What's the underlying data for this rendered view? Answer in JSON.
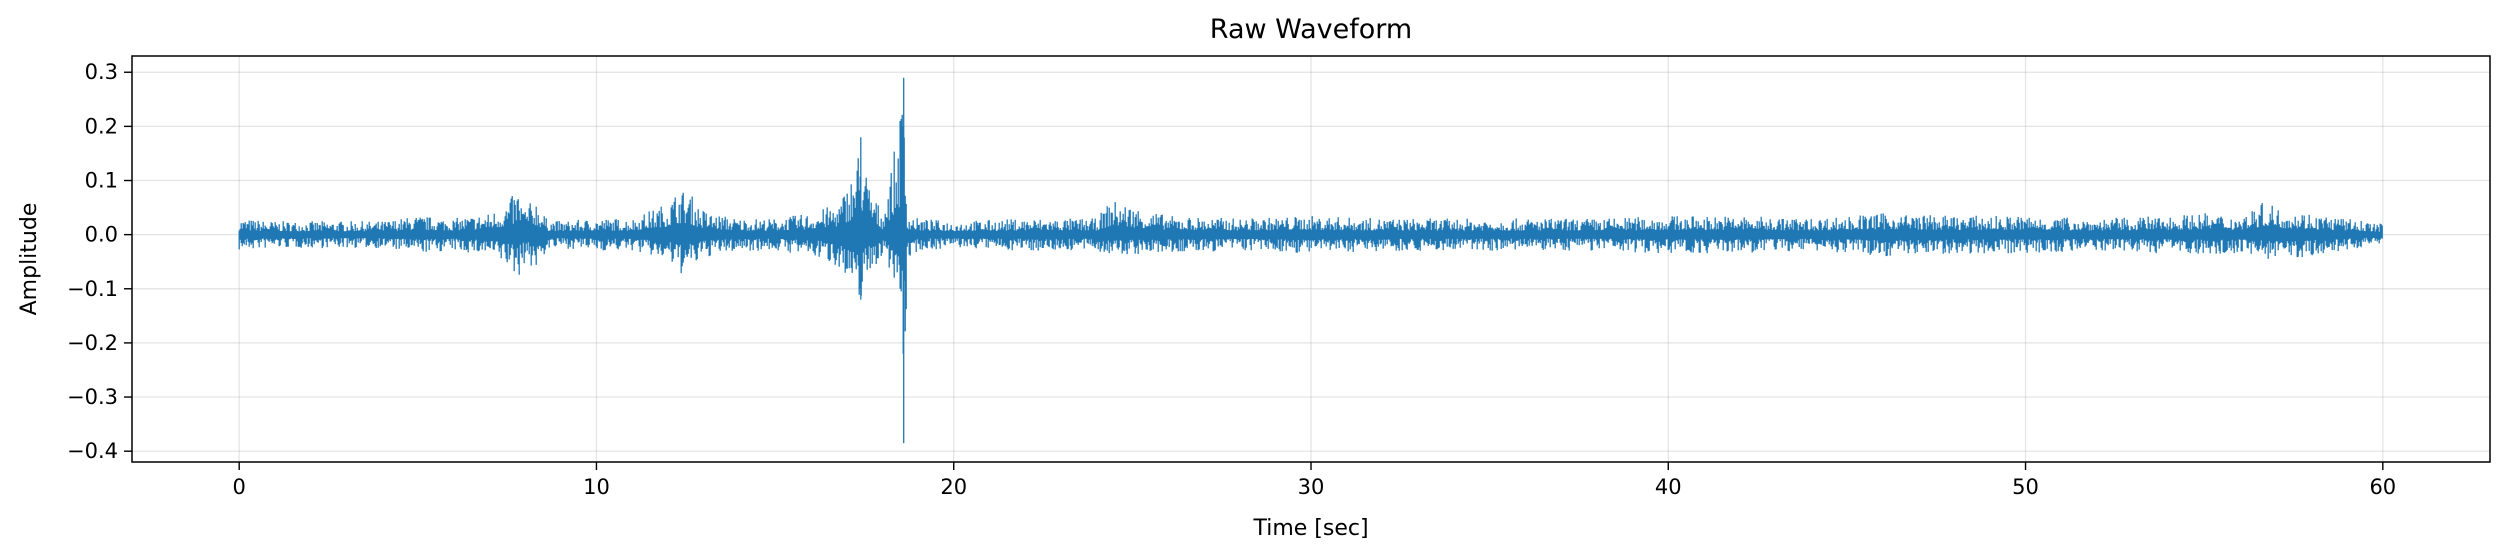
{
  "chart_data": {
    "type": "line",
    "title": "Raw Waveform",
    "xlabel": "Time [sec]",
    "ylabel": "Amplitude",
    "xlim": [
      -3,
      63
    ],
    "ylim": [
      -0.42,
      0.33
    ],
    "xticks": [
      0,
      10,
      20,
      30,
      40,
      50,
      60
    ],
    "xtick_labels": [
      "0",
      "10",
      "20",
      "30",
      "40",
      "50",
      "60"
    ],
    "yticks": [
      0.3,
      0.2,
      0.1,
      0.0,
      -0.1,
      -0.2,
      -0.3,
      -0.4
    ],
    "ytick_labels": [
      "0.3",
      "0.2",
      "0.1",
      "0.0",
      "−0.1",
      "−0.2",
      "−0.3",
      "−0.4"
    ],
    "grid": true,
    "line_color": "#1f77b4",
    "series": [
      {
        "x": [
          0,
          1,
          2,
          3,
          4,
          5,
          6,
          7,
          7.5,
          7.8,
          8,
          8.3,
          8.6,
          9,
          10,
          11,
          12,
          12.3,
          12.6,
          12.9,
          13.2,
          14,
          15,
          16,
          16.8,
          17.2,
          17.4,
          17.6,
          18,
          18.5,
          18.6,
          18.7,
          19,
          20,
          22,
          24,
          24.4,
          26,
          28,
          30,
          32,
          34,
          36,
          38,
          40,
          42,
          44,
          46,
          48,
          50,
          52,
          54,
          55,
          56,
          56.8,
          57,
          58,
          59,
          60
        ],
        "y_max": [
          0.03,
          0.025,
          0.025,
          0.025,
          0.025,
          0.035,
          0.03,
          0.04,
          0.06,
          0.085,
          0.05,
          0.07,
          0.03,
          0.025,
          0.03,
          0.03,
          0.06,
          0.085,
          0.08,
          0.05,
          0.04,
          0.03,
          0.03,
          0.04,
          0.06,
          0.12,
          0.18,
          0.1,
          0.04,
          0.21,
          0.29,
          0.04,
          0.03,
          0.025,
          0.03,
          0.03,
          0.065,
          0.035,
          0.03,
          0.035,
          0.03,
          0.03,
          0.03,
          0.03,
          0.035,
          0.035,
          0.03,
          0.04,
          0.035,
          0.035,
          0.03,
          0.035,
          0.04,
          0.035,
          0.065,
          0.05,
          0.04,
          0.03,
          0.02
        ],
        "y_min": [
          -0.03,
          -0.025,
          -0.025,
          -0.025,
          -0.025,
          -0.035,
          -0.03,
          -0.04,
          -0.06,
          -0.085,
          -0.05,
          -0.07,
          -0.03,
          -0.025,
          -0.03,
          -0.03,
          -0.05,
          -0.075,
          -0.07,
          -0.05,
          -0.04,
          -0.03,
          -0.03,
          -0.04,
          -0.06,
          -0.13,
          -0.12,
          -0.08,
          -0.04,
          -0.1,
          -0.385,
          -0.05,
          -0.03,
          -0.025,
          -0.03,
          -0.03,
          -0.04,
          -0.035,
          -0.03,
          -0.035,
          -0.03,
          -0.03,
          -0.03,
          -0.03,
          -0.035,
          -0.035,
          -0.03,
          -0.04,
          -0.035,
          -0.035,
          -0.03,
          -0.035,
          -0.035,
          -0.035,
          -0.045,
          -0.05,
          -0.04,
          -0.03,
          -0.015
        ]
      }
    ]
  }
}
